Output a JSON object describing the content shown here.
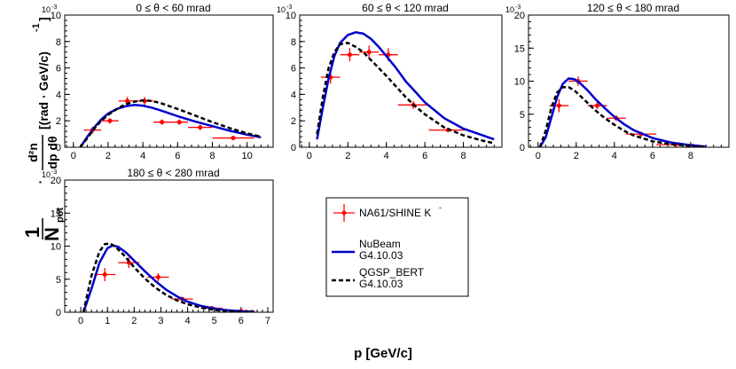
{
  "figure": {
    "y_label_prefix_num": "1",
    "y_label_prefix_den": "N",
    "y_label_prefix_den_sub": "pot",
    "y_label_main_num": "d²n",
    "y_label_main_den": "dp dθ",
    "y_label_units": "[(rad · GeV/c)",
    "y_label_units_exp": "-1",
    "y_label_units_close": "]",
    "x_label": "p [GeV/c]",
    "y_exponent": "10",
    "y_exponent_power": "-3"
  },
  "legend": {
    "items": [
      {
        "label_lines": [
          "NA61/SHINE K"
        ],
        "superscript": "-",
        "style": "data",
        "color": "#ff0000"
      },
      {
        "label_lines": [
          "NuBeam",
          "G4.10.03"
        ],
        "style": "solid",
        "color": "#0000cc"
      },
      {
        "label_lines": [
          "QGSP_BERT",
          "G4.10.03"
        ],
        "style": "dashed",
        "color": "#000000"
      }
    ]
  },
  "chart_data": [
    {
      "type": "scatter",
      "title": "0 ≤ θ < 60 mrad",
      "xlim": [
        -0.5,
        11.5
      ],
      "ylim": [
        0,
        10
      ],
      "xticks": [
        0,
        2,
        4,
        6,
        8,
        10
      ],
      "yticks": [
        0,
        2,
        4,
        6,
        8,
        10
      ],
      "series": [
        {
          "name": "NA61/SHINE K-",
          "style": "data",
          "points": [
            {
              "x": 1.1,
              "y": 1.3,
              "xerr": 0.5,
              "yerr": 0.25
            },
            {
              "x": 2.1,
              "y": 2.0,
              "xerr": 0.5,
              "yerr": 0.2
            },
            {
              "x": 3.1,
              "y": 3.5,
              "xerr": 0.5,
              "yerr": 0.3
            },
            {
              "x": 4.1,
              "y": 3.5,
              "xerr": 0.5,
              "yerr": 0.3
            },
            {
              "x": 5.1,
              "y": 1.9,
              "xerr": 0.5,
              "yerr": 0.2
            },
            {
              "x": 6.1,
              "y": 1.9,
              "xerr": 0.5,
              "yerr": 0.2
            },
            {
              "x": 7.3,
              "y": 1.5,
              "xerr": 0.7,
              "yerr": 0.2
            },
            {
              "x": 9.2,
              "y": 0.7,
              "xerr": 1.2,
              "yerr": 0.15
            }
          ]
        },
        {
          "name": "NuBeam G4.10.03",
          "style": "solid",
          "x": [
            0.4,
            0.8,
            1.2,
            1.6,
            2.0,
            2.5,
            3.0,
            3.5,
            4.0,
            4.5,
            5.0,
            6.0,
            7.0,
            8.0,
            9.0,
            10.0,
            10.8
          ],
          "y": [
            0.0,
            0.8,
            1.5,
            2.1,
            2.55,
            2.9,
            3.1,
            3.2,
            3.15,
            3.0,
            2.8,
            2.35,
            1.95,
            1.6,
            1.25,
            0.95,
            0.75
          ]
        },
        {
          "name": "QGSP_BERT G4.10.03",
          "style": "dashed",
          "x": [
            0.4,
            0.8,
            1.2,
            1.6,
            2.0,
            2.5,
            3.0,
            3.5,
            4.0,
            4.5,
            5.0,
            6.0,
            7.0,
            8.0,
            9.0,
            10.0,
            10.8
          ],
          "y": [
            0.0,
            0.7,
            1.4,
            2.0,
            2.45,
            2.9,
            3.25,
            3.45,
            3.55,
            3.5,
            3.35,
            2.9,
            2.4,
            1.9,
            1.45,
            1.05,
            0.8
          ]
        }
      ]
    },
    {
      "type": "scatter",
      "title": "60 ≤ θ < 120 mrad",
      "xlim": [
        -0.5,
        10.0
      ],
      "ylim": [
        0,
        10
      ],
      "xticks": [
        0,
        2,
        4,
        6,
        8
      ],
      "yticks": [
        0,
        2,
        4,
        6,
        8,
        10
      ],
      "series": [
        {
          "name": "NA61/SHINE K-",
          "style": "data",
          "points": [
            {
              "x": 1.1,
              "y": 5.3,
              "xerr": 0.5,
              "yerr": 0.5
            },
            {
              "x": 2.1,
              "y": 7.0,
              "xerr": 0.5,
              "yerr": 0.5
            },
            {
              "x": 3.1,
              "y": 7.2,
              "xerr": 0.5,
              "yerr": 0.5
            },
            {
              "x": 4.1,
              "y": 7.0,
              "xerr": 0.5,
              "yerr": 0.5
            },
            {
              "x": 5.4,
              "y": 3.2,
              "xerr": 0.8,
              "yerr": 0.3
            },
            {
              "x": 7.2,
              "y": 1.3,
              "xerr": 1.0,
              "yerr": 0.15
            }
          ]
        },
        {
          "name": "NuBeam G4.10.03",
          "style": "solid",
          "x": [
            0.4,
            0.7,
            1.0,
            1.3,
            1.6,
            2.0,
            2.4,
            2.8,
            3.2,
            3.6,
            4.0,
            4.5,
            5.0,
            5.5,
            6.0,
            7.0,
            8.0,
            9.0,
            9.6
          ],
          "y": [
            0.6,
            3.0,
            5.2,
            6.9,
            7.9,
            8.5,
            8.7,
            8.6,
            8.2,
            7.6,
            6.9,
            6.0,
            5.0,
            4.2,
            3.4,
            2.2,
            1.4,
            0.9,
            0.6
          ]
        },
        {
          "name": "QGSP_BERT G4.10.03",
          "style": "dashed",
          "x": [
            0.4,
            0.7,
            1.0,
            1.3,
            1.6,
            2.0,
            2.4,
            2.8,
            3.2,
            3.6,
            4.0,
            4.5,
            5.0,
            5.5,
            6.0,
            7.0,
            8.0,
            9.0,
            9.6
          ],
          "y": [
            1.0,
            3.8,
            6.0,
            7.2,
            7.8,
            7.9,
            7.6,
            7.2,
            6.6,
            6.0,
            5.4,
            4.6,
            3.8,
            3.1,
            2.5,
            1.5,
            0.9,
            0.5,
            0.3
          ]
        }
      ]
    },
    {
      "type": "scatter",
      "title": "120 ≤ θ < 180 mrad",
      "xlim": [
        -0.5,
        10.0
      ],
      "ylim": [
        0,
        20
      ],
      "xticks": [
        0,
        2,
        4,
        6,
        8
      ],
      "yticks": [
        0,
        5,
        10,
        15,
        20
      ],
      "series": [
        {
          "name": "NA61/SHINE K-",
          "style": "data",
          "points": [
            {
              "x": 1.1,
              "y": 6.3,
              "xerr": 0.5,
              "yerr": 1.0
            },
            {
              "x": 2.1,
              "y": 10.0,
              "xerr": 0.5,
              "yerr": 0.7
            },
            {
              "x": 3.1,
              "y": 6.3,
              "xerr": 0.5,
              "yerr": 0.5
            },
            {
              "x": 4.1,
              "y": 4.4,
              "xerr": 0.5,
              "yerr": 0.4
            },
            {
              "x": 5.4,
              "y": 2.0,
              "xerr": 0.8,
              "yerr": 0.3
            },
            {
              "x": 7.2,
              "y": 0.4,
              "xerr": 1.0,
              "yerr": 0.1
            }
          ]
        },
        {
          "name": "NuBeam G4.10.03",
          "style": "solid",
          "x": [
            0.1,
            0.4,
            0.7,
            1.0,
            1.3,
            1.6,
            1.9,
            2.2,
            2.6,
            3.0,
            3.5,
            4.0,
            4.5,
            5.0,
            6.0,
            7.0,
            8.0,
            8.8
          ],
          "y": [
            0.0,
            1.5,
            4.5,
            7.6,
            9.6,
            10.4,
            10.3,
            9.7,
            8.6,
            7.3,
            5.9,
            4.6,
            3.5,
            2.6,
            1.4,
            0.7,
            0.3,
            0.1
          ]
        },
        {
          "name": "QGSP_BERT G4.10.03",
          "style": "dashed",
          "x": [
            0.1,
            0.4,
            0.7,
            1.0,
            1.3,
            1.6,
            1.9,
            2.2,
            2.6,
            3.0,
            3.5,
            4.0,
            4.5,
            5.0,
            6.0,
            7.0,
            8.0,
            8.8
          ],
          "y": [
            0.0,
            2.5,
            6.0,
            8.3,
            9.1,
            9.1,
            8.6,
            7.8,
            6.7,
            5.6,
            4.4,
            3.4,
            2.5,
            1.8,
            0.9,
            0.45,
            0.2,
            0.05
          ]
        }
      ]
    },
    {
      "type": "scatter",
      "title": "180 ≤ θ < 280 mrad",
      "xlim": [
        -0.6,
        7.2
      ],
      "ylim": [
        0,
        20
      ],
      "xticks": [
        0,
        1,
        2,
        3,
        4,
        5,
        6,
        7
      ],
      "yticks": [
        0,
        5,
        10,
        15,
        20
      ],
      "series": [
        {
          "name": "NA61/SHINE K-",
          "style": "data",
          "points": [
            {
              "x": 0.9,
              "y": 5.7,
              "xerr": 0.4,
              "yerr": 1.0
            },
            {
              "x": 1.8,
              "y": 7.5,
              "xerr": 0.4,
              "yerr": 0.8
            },
            {
              "x": 2.9,
              "y": 5.3,
              "xerr": 0.4,
              "yerr": 0.6
            },
            {
              "x": 3.8,
              "y": 2.0,
              "xerr": 0.4,
              "yerr": 0.3
            },
            {
              "x": 4.9,
              "y": 0.6,
              "xerr": 0.4,
              "yerr": 0.2
            },
            {
              "x": 6.0,
              "y": 0.2,
              "xerr": 0.5,
              "yerr": 0.1
            }
          ]
        },
        {
          "name": "NuBeam G4.10.03",
          "style": "solid",
          "x": [
            0.1,
            0.4,
            0.7,
            1.0,
            1.2,
            1.4,
            1.7,
            2.0,
            2.4,
            2.8,
            3.2,
            3.6,
            4.0,
            4.5,
            5.0,
            5.5,
            6.0,
            6.5
          ],
          "y": [
            0.0,
            3.5,
            7.5,
            9.7,
            10.1,
            9.9,
            9.0,
            7.8,
            6.2,
            4.7,
            3.4,
            2.4,
            1.6,
            0.95,
            0.55,
            0.3,
            0.15,
            0.05
          ]
        },
        {
          "name": "QGSP_BERT G4.10.03",
          "style": "dashed",
          "x": [
            0.1,
            0.4,
            0.7,
            0.9,
            1.1,
            1.3,
            1.6,
            2.0,
            2.4,
            2.8,
            3.2,
            3.6,
            4.0,
            4.5,
            5.0,
            5.5,
            6.0,
            6.5
          ],
          "y": [
            0.0,
            5.5,
            9.2,
            10.3,
            10.4,
            9.9,
            8.7,
            6.8,
            5.1,
            3.7,
            2.6,
            1.8,
            1.2,
            0.7,
            0.35,
            0.18,
            0.08,
            0.02
          ]
        }
      ]
    }
  ]
}
